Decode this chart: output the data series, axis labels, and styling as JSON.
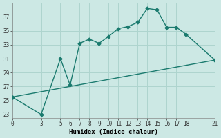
{
  "xlabel": "Humidex (Indice chaleur)",
  "ylabel": "",
  "background_color": "#cce8e4",
  "grid_color": "#aed4ce",
  "line_color": "#1a7a6e",
  "curve1_x": [
    0,
    3,
    5,
    6,
    7,
    8,
    9,
    10,
    11,
    12,
    13,
    14,
    15,
    16,
    17,
    18,
    21
  ],
  "curve1_y": [
    25.5,
    23,
    31,
    27.2,
    33.2,
    33.8,
    33.2,
    34.2,
    35.3,
    35.6,
    36.2,
    38.2,
    38.0,
    35.5,
    35.5,
    34.5,
    30.8
  ],
  "curve2_x": [
    0,
    21
  ],
  "curve2_y": [
    25.5,
    30.8
  ],
  "xlim": [
    0,
    21
  ],
  "ylim": [
    22.5,
    39
  ],
  "xticks": [
    0,
    3,
    5,
    6,
    7,
    8,
    9,
    10,
    11,
    12,
    13,
    14,
    15,
    16,
    17,
    18,
    21
  ],
  "yticks": [
    23,
    25,
    27,
    29,
    31,
    33,
    35,
    37
  ],
  "marker": "D",
  "markersize": 2.5,
  "linewidth": 1.0,
  "tick_fontsize": 5.5,
  "xlabel_fontsize": 6.5
}
